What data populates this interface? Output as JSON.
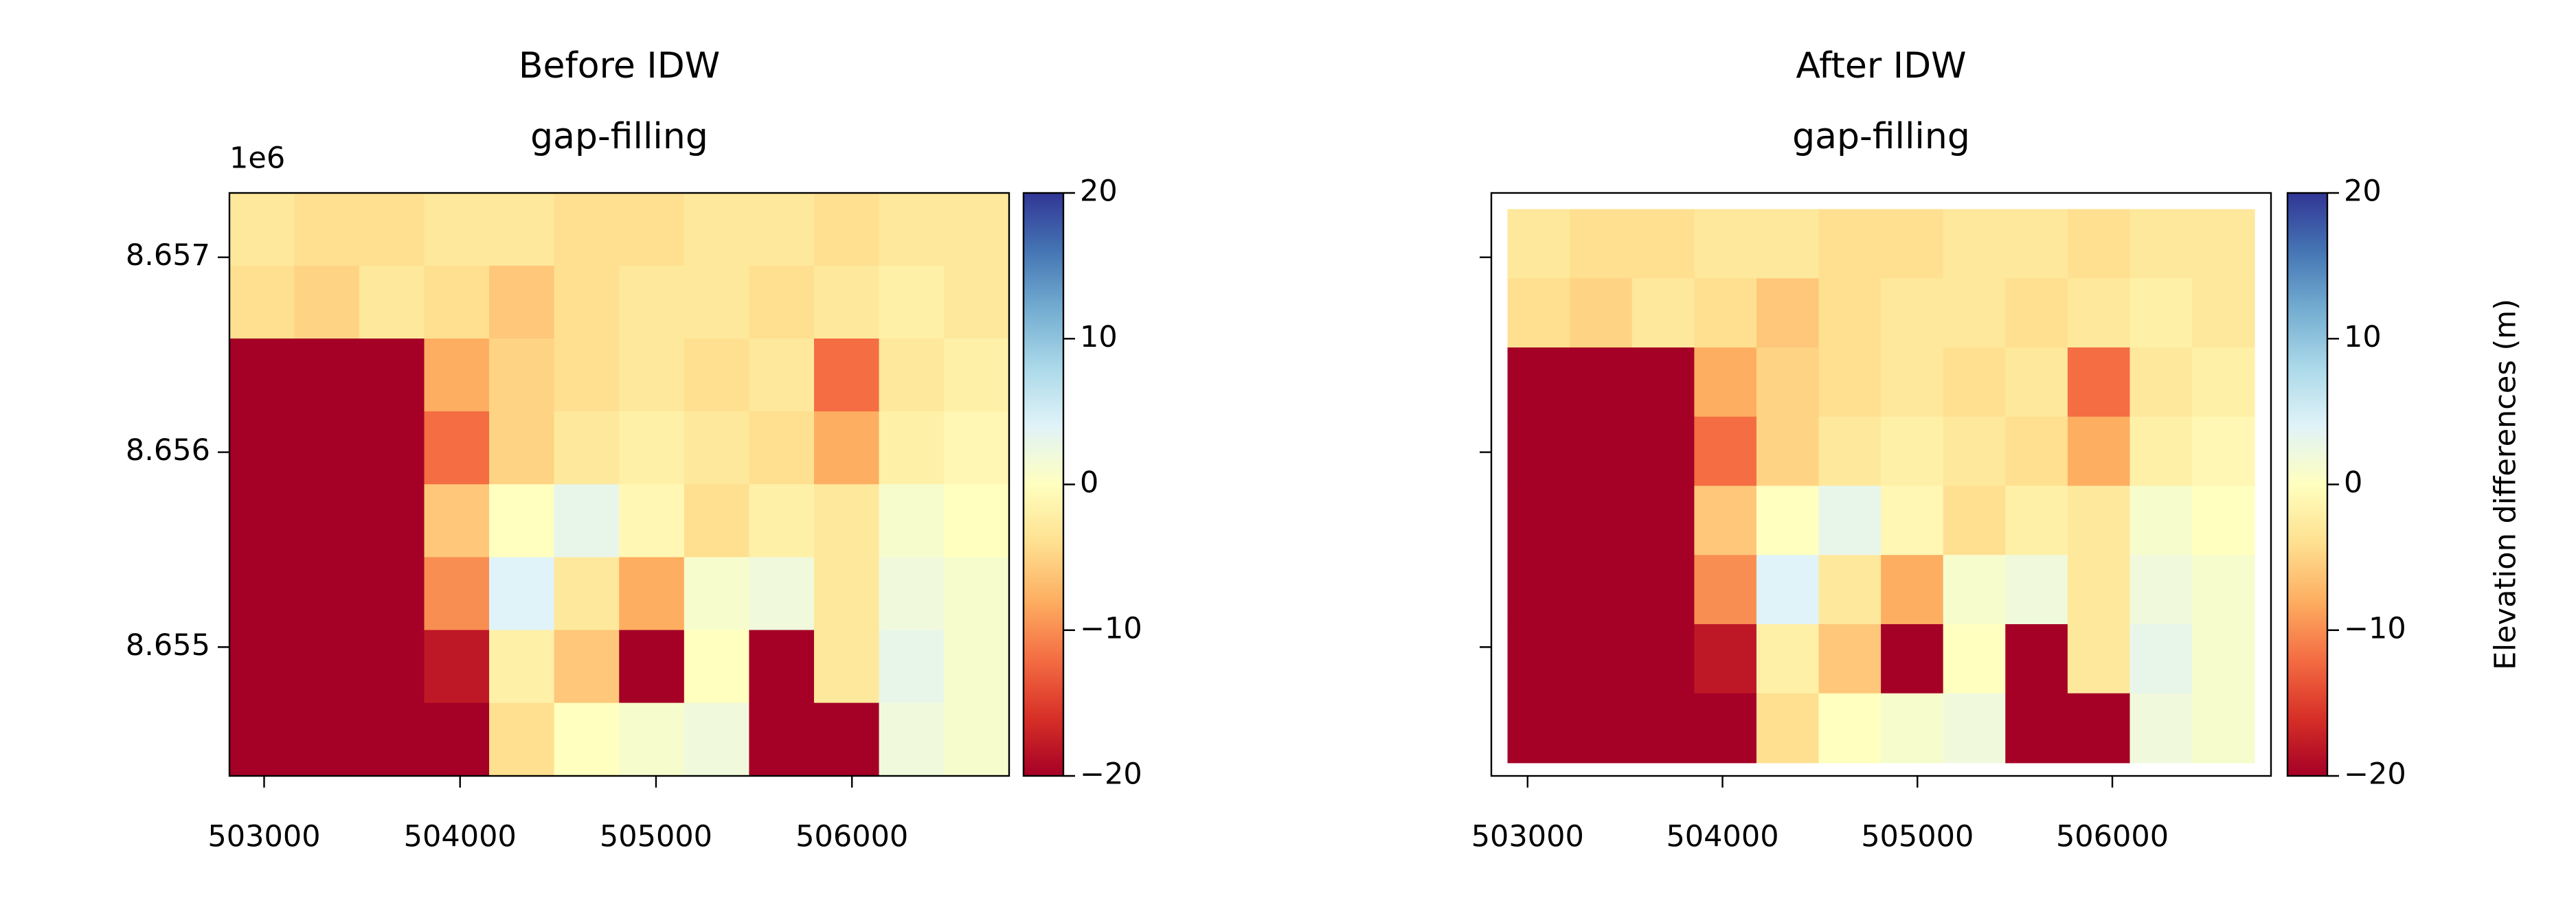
{
  "chart_data": [
    {
      "type": "heatmap",
      "title": [
        "Before IDW",
        "gap-filling"
      ],
      "xlim": [
        502823,
        506802
      ],
      "ylim": [
        8654339,
        8657330
      ],
      "extent": [
        502823,
        506802,
        8654339,
        8657330
      ],
      "xticks": [
        503000,
        504000,
        505000,
        506000
      ],
      "yticks": [
        {
          "value": 8655000,
          "label": "8.655"
        },
        {
          "value": 8656000,
          "label": "8.656"
        },
        {
          "value": 8657000,
          "label": "8.657"
        }
      ],
      "y_offset_label": "1e6",
      "colormap": "RdYlBu",
      "values": [
        [
          -3,
          -4,
          -4,
          -3,
          -3,
          -4,
          -4,
          -3,
          -3,
          -4,
          -3,
          -3
        ],
        [
          -4,
          -5,
          -3,
          -4,
          -6,
          -4,
          -3,
          -3,
          -4,
          -3,
          -2,
          -3
        ],
        [
          -20,
          -20,
          -20,
          -8,
          -5,
          -4,
          -3,
          -4,
          -3,
          -12,
          -3,
          -2
        ],
        [
          -20,
          -20,
          -20,
          -12,
          -5,
          -3,
          -2,
          -3,
          -4,
          -8,
          -2,
          -1
        ],
        [
          -20,
          -20,
          -20,
          -6,
          0,
          3,
          -1,
          -4,
          -2,
          -3,
          1,
          0
        ],
        [
          -20,
          -20,
          -20,
          -10,
          4,
          -3,
          -8,
          1,
          2,
          -3,
          2,
          1
        ],
        [
          -20,
          -20,
          -20,
          -18,
          -2,
          -6,
          -20,
          0,
          -20,
          -3,
          3,
          1
        ],
        [
          -20,
          -20,
          -20,
          -20,
          -4,
          0,
          1,
          2,
          -20,
          -20,
          2,
          1
        ]
      ],
      "colorbar": {
        "lim": [
          -20,
          20
        ],
        "ticks": [
          {
            "value": -20,
            "label": "−20"
          },
          {
            "value": -10,
            "label": "−10"
          },
          0,
          10,
          20
        ]
      }
    },
    {
      "type": "heatmap",
      "title": [
        "After IDW",
        "gap-filling"
      ],
      "xlim": [
        502814,
        506814
      ],
      "ylim": [
        8654339,
        8657330
      ],
      "extent": [
        502898,
        506729,
        8654407,
        8657246
      ],
      "xticks": [
        503000,
        504000,
        505000,
        506000
      ],
      "yticks": [
        8655000,
        8656000,
        8657000
      ],
      "colormap": "RdYlBu",
      "values": [
        [
          -3,
          -4,
          -4,
          -3,
          -3,
          -4,
          -4,
          -3,
          -3,
          -4,
          -3,
          -3
        ],
        [
          -4,
          -5,
          -3,
          -4,
          -6,
          -4,
          -3,
          -3,
          -4,
          -3,
          -2,
          -3
        ],
        [
          -20,
          -20,
          -20,
          -8,
          -5,
          -4,
          -3,
          -4,
          -3,
          -12,
          -3,
          -2
        ],
        [
          -20,
          -20,
          -20,
          -12,
          -5,
          -3,
          -2,
          -3,
          -4,
          -8,
          -2,
          -1
        ],
        [
          -20,
          -20,
          -20,
          -6,
          0,
          3,
          -1,
          -4,
          -2,
          -3,
          1,
          0
        ],
        [
          -20,
          -20,
          -20,
          -10,
          4,
          -3,
          -8,
          1,
          2,
          -3,
          2,
          1
        ],
        [
          -20,
          -20,
          -20,
          -18,
          -2,
          -6,
          -20,
          0,
          -20,
          -3,
          3,
          1
        ],
        [
          -20,
          -20,
          -20,
          -20,
          -4,
          0,
          1,
          2,
          -20,
          -20,
          2,
          1
        ]
      ],
      "colorbar": {
        "label": "Elevation differences (m)",
        "lim": [
          -20,
          20
        ],
        "ticks": [
          {
            "value": -20,
            "label": "−20"
          },
          {
            "value": -10,
            "label": "−10"
          },
          0,
          10,
          20
        ]
      }
    }
  ]
}
